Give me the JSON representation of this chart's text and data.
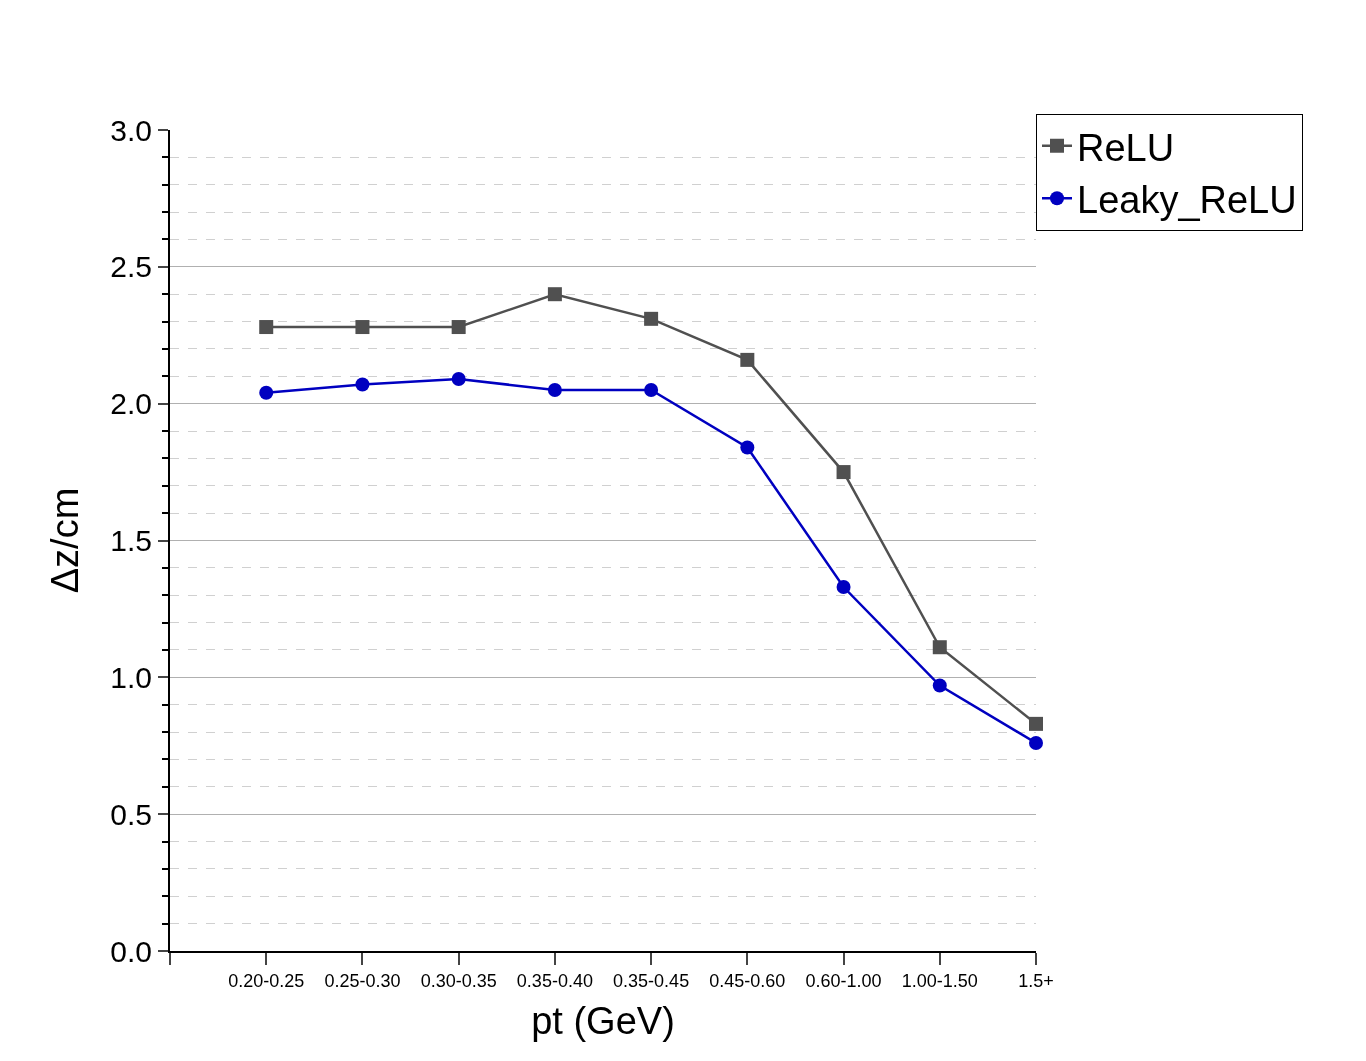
{
  "chart_data": {
    "type": "line",
    "xlabel": "pt (GeV)",
    "ylabel": "Δz/cm",
    "categories": [
      null,
      "0.20-0.25",
      "0.25-0.30",
      "0.30-0.35",
      "0.35-0.40",
      "0.35-0.45",
      "0.45-0.60",
      "0.60-1.00",
      "1.00-1.50",
      "1.5+"
    ],
    "series": [
      {
        "name": "ReLU",
        "color": "#505050",
        "marker": "square",
        "values": [
          null,
          2.28,
          2.28,
          2.28,
          2.4,
          2.31,
          2.16,
          1.75,
          1.11,
          0.83
        ]
      },
      {
        "name": "Leaky_ReLU",
        "color": "#0000c0",
        "marker": "circle",
        "values": [
          null,
          2.04,
          2.07,
          2.09,
          2.05,
          2.05,
          1.84,
          1.33,
          0.97,
          0.76
        ]
      }
    ],
    "ylim": [
      0,
      3
    ],
    "yticks": [
      {
        "value": 0,
        "label": "0.0"
      },
      {
        "value": 0.1,
        "label": null
      },
      {
        "value": 0.2,
        "label": null
      },
      {
        "value": 0.3,
        "label": null
      },
      {
        "value": 0.4,
        "label": null
      },
      0.5,
      {
        "value": 0.6,
        "label": null
      },
      {
        "value": 0.7,
        "label": null
      },
      {
        "value": 0.8,
        "label": null
      },
      {
        "value": 0.9,
        "label": null
      },
      {
        "value": 1,
        "label": "1.0"
      },
      {
        "value": 1.1,
        "label": null
      },
      {
        "value": 1.2,
        "label": null
      },
      {
        "value": 1.3,
        "label": null
      },
      {
        "value": 1.4,
        "label": null
      },
      1.5,
      {
        "value": 1.6,
        "label": null
      },
      {
        "value": 1.7,
        "label": null
      },
      {
        "value": 1.8,
        "label": null
      },
      {
        "value": 1.9,
        "label": null
      },
      {
        "value": 2,
        "label": "2.0"
      },
      {
        "value": 2.1,
        "label": null
      },
      {
        "value": 2.2,
        "label": null
      },
      {
        "value": 2.3,
        "label": null
      },
      {
        "value": 2.4,
        "label": null
      },
      2.5,
      {
        "value": 2.6,
        "label": null
      },
      {
        "value": 2.7,
        "label": null
      },
      {
        "value": 2.8,
        "label": null
      },
      {
        "value": 2.9,
        "label": null
      },
      {
        "value": 3,
        "label": "3.0"
      }
    ],
    "grid": "y",
    "legend": "top right",
    "line_style": "solid"
  }
}
